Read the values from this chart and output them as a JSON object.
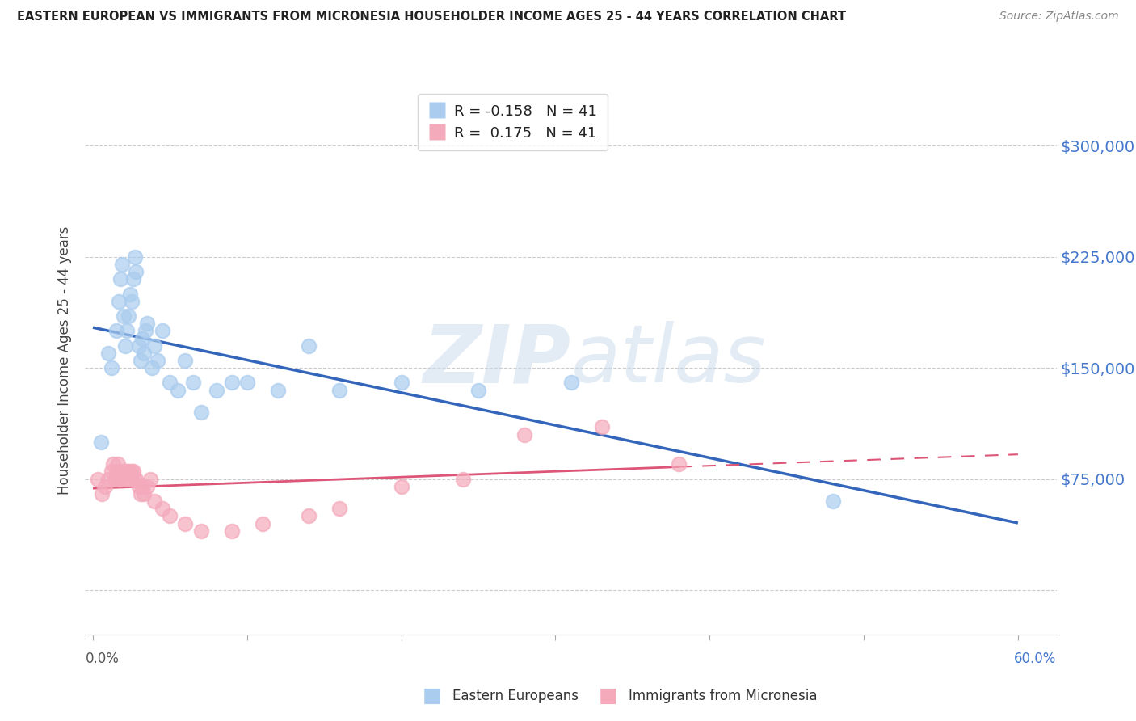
{
  "title": "EASTERN EUROPEAN VS IMMIGRANTS FROM MICRONESIA HOUSEHOLDER INCOME AGES 25 - 44 YEARS CORRELATION CHART",
  "source": "Source: ZipAtlas.com",
  "ylabel": "Householder Income Ages 25 - 44 years",
  "yticks": [
    0,
    75000,
    150000,
    225000,
    300000
  ],
  "ytick_labels": [
    "",
    "$75,000",
    "$150,000",
    "$225,000",
    "$300,000"
  ],
  "xlim": [
    -0.005,
    0.625
  ],
  "ylim": [
    -30000,
    340000
  ],
  "legend_labels": [
    "Eastern Europeans",
    "Immigrants from Micronesia"
  ],
  "R_eastern": -0.158,
  "N_eastern": 41,
  "R_micronesia": 0.175,
  "N_micronesia": 41,
  "color_eastern": "#aaccee",
  "color_micronesia": "#f4aabb",
  "color_eastern_line": "#3366bb",
  "color_micronesia_line": "#dd5577",
  "background_color": "#ffffff",
  "eastern_x": [
    0.005,
    0.01,
    0.012,
    0.015,
    0.017,
    0.018,
    0.019,
    0.02,
    0.021,
    0.022,
    0.023,
    0.024,
    0.025,
    0.026,
    0.027,
    0.028,
    0.03,
    0.031,
    0.032,
    0.033,
    0.034,
    0.035,
    0.038,
    0.04,
    0.042,
    0.045,
    0.05,
    0.055,
    0.06,
    0.065,
    0.07,
    0.08,
    0.09,
    0.1,
    0.12,
    0.14,
    0.16,
    0.2,
    0.25,
    0.31,
    0.48
  ],
  "eastern_y": [
    100000,
    160000,
    150000,
    175000,
    195000,
    210000,
    220000,
    185000,
    165000,
    175000,
    185000,
    200000,
    195000,
    210000,
    225000,
    215000,
    165000,
    155000,
    170000,
    160000,
    175000,
    180000,
    150000,
    165000,
    155000,
    175000,
    140000,
    135000,
    155000,
    140000,
    120000,
    135000,
    140000,
    140000,
    135000,
    165000,
    135000,
    140000,
    135000,
    140000,
    60000
  ],
  "micronesia_x": [
    0.003,
    0.006,
    0.008,
    0.01,
    0.012,
    0.013,
    0.014,
    0.015,
    0.016,
    0.017,
    0.018,
    0.019,
    0.02,
    0.021,
    0.022,
    0.023,
    0.024,
    0.025,
    0.026,
    0.027,
    0.028,
    0.03,
    0.031,
    0.032,
    0.033,
    0.035,
    0.037,
    0.04,
    0.045,
    0.05,
    0.06,
    0.07,
    0.09,
    0.11,
    0.14,
    0.16,
    0.2,
    0.24,
    0.28,
    0.33,
    0.38
  ],
  "micronesia_y": [
    75000,
    65000,
    70000,
    75000,
    80000,
    85000,
    75000,
    80000,
    85000,
    75000,
    75000,
    80000,
    80000,
    75000,
    80000,
    80000,
    75000,
    80000,
    80000,
    75000,
    75000,
    70000,
    65000,
    70000,
    65000,
    70000,
    75000,
    60000,
    55000,
    50000,
    45000,
    40000,
    40000,
    45000,
    50000,
    55000,
    70000,
    75000,
    105000,
    110000,
    85000
  ]
}
